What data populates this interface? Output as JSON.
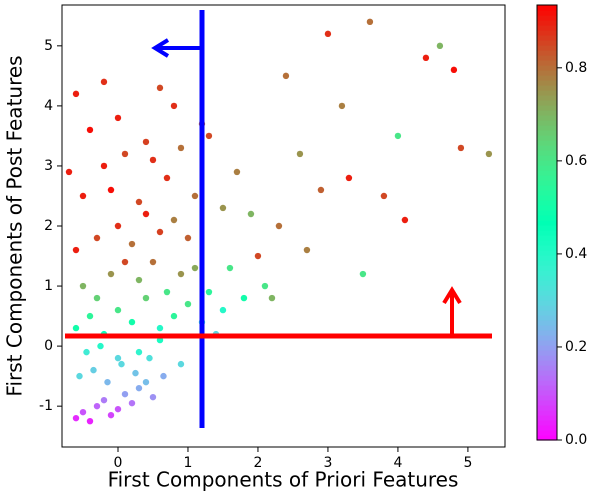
{
  "chart_data": {
    "type": "scatter",
    "x_label": "First Components of Priori Features",
    "y_label": "First Components of Post Features",
    "colormap": "rainbow",
    "xlim": [
      -0.8,
      5.53
    ],
    "xticks": [
      0,
      1,
      2,
      3,
      4,
      5
    ],
    "ylim": [
      -1.68,
      5.68
    ],
    "yticks": [
      -1,
      0,
      1,
      2,
      3,
      4,
      5
    ],
    "clim": [
      0,
      0.935
    ],
    "cticks": [
      {
        "value": 0,
        "label": "0.0"
      },
      0.2,
      0.4,
      0.6,
      0.8
    ],
    "x": [
      -0.6,
      -0.5,
      -0.4,
      -0.3,
      -0.2,
      -0.1,
      0,
      0.1,
      0.2,
      0.3,
      0.4,
      0.5,
      -0.55,
      -0.35,
      -0.15,
      0.05,
      0.25,
      0.45,
      0.65,
      -0.45,
      -0.25,
      0,
      0.3,
      0.6,
      0.9,
      -0.6,
      -0.4,
      -0.2,
      0,
      0.2,
      0.4,
      0.6,
      0.8,
      1.0,
      1.2,
      1.4,
      -0.5,
      -0.1,
      0.3,
      0.7,
      1.1,
      1.5,
      1.8,
      2.1,
      0.5,
      0.9,
      1.3,
      -0.3,
      0.1,
      1.6,
      -0.6,
      -0.3,
      0,
      0.2,
      0.4,
      0.6,
      0.8,
      1.0,
      -0.5,
      -0.1,
      0.3,
      0.7,
      1.1,
      1.5,
      1.9,
      -0.2,
      0.1,
      0.5,
      0.9,
      1.3,
      1.7,
      -0.4,
      0.0,
      0.4,
      0.8,
      1.2,
      -0.6,
      -0.2,
      0.6,
      -0.7,
      2.0,
      2.3,
      2.6,
      2.9,
      3.2,
      3.5,
      3.8,
      4.1,
      4.4,
      4.6,
      4.9,
      5.3,
      2.4,
      3.0,
      3.6,
      2.2,
      2.7,
      3.3,
      4.8,
      4.0
    ],
    "y": [
      -1.2,
      -1.1,
      -1.25,
      -1.0,
      -0.9,
      -1.15,
      -1.05,
      -0.8,
      -0.95,
      -0.7,
      -0.6,
      -0.85,
      -0.5,
      -0.4,
      -0.6,
      -0.3,
      -0.45,
      -0.2,
      -0.5,
      -0.1,
      0,
      -0.2,
      -0.1,
      0.1,
      -0.3,
      0.3,
      0.5,
      0.2,
      0.6,
      0.4,
      0.8,
      0.3,
      0.5,
      0.7,
      0.4,
      0.2,
      1.0,
      1.2,
      1.1,
      0.9,
      1.3,
      0.6,
      0.8,
      1.0,
      1.4,
      1.2,
      0.9,
      0.8,
      1.4,
      1.3,
      1.6,
      1.8,
      2.0,
      1.7,
      2.2,
      1.9,
      2.1,
      1.8,
      2.5,
      2.6,
      2.4,
      2.8,
      2.5,
      2.3,
      2.2,
      3.0,
      3.2,
      3.1,
      3.3,
      3.5,
      2.9,
      3.6,
      3.8,
      3.4,
      4.0,
      3.7,
      4.2,
      4.4,
      4.3,
      2.9,
      1.5,
      2.0,
      3.2,
      2.6,
      4.0,
      1.2,
      2.5,
      2.1,
      4.8,
      5.0,
      3.3,
      3.2,
      4.5,
      5.2,
      5.4,
      0.8,
      1.6,
      2.8,
      4.6,
      3.5
    ],
    "c": [
      0.05,
      0.1,
      0.04,
      0.12,
      0.15,
      0.08,
      0.1,
      0.2,
      0.14,
      0.22,
      0.25,
      0.18,
      0.3,
      0.28,
      0.24,
      0.3,
      0.26,
      0.32,
      0.22,
      0.35,
      0.4,
      0.3,
      0.38,
      0.42,
      0.3,
      0.5,
      0.55,
      0.45,
      0.6,
      0.5,
      0.65,
      0.4,
      0.55,
      0.6,
      0.35,
      0.3,
      0.7,
      0.75,
      0.7,
      0.6,
      0.72,
      0.4,
      0.5,
      0.6,
      0.8,
      0.75,
      0.55,
      0.65,
      0.85,
      0.6,
      0.9,
      0.85,
      0.88,
      0.8,
      0.9,
      0.86,
      0.78,
      0.82,
      0.9,
      0.92,
      0.85,
      0.88,
      0.8,
      0.75,
      0.7,
      0.9,
      0.85,
      0.88,
      0.8,
      0.85,
      0.78,
      0.92,
      0.9,
      0.86,
      0.88,
      0.82,
      0.9,
      0.88,
      0.85,
      0.9,
      0.85,
      0.8,
      0.75,
      0.82,
      0.78,
      0.6,
      0.85,
      0.9,
      0.9,
      0.7,
      0.85,
      0.75,
      0.8,
      0.88,
      0.8,
      0.7,
      0.78,
      0.9,
      0.92,
      0.6
    ]
  }
}
